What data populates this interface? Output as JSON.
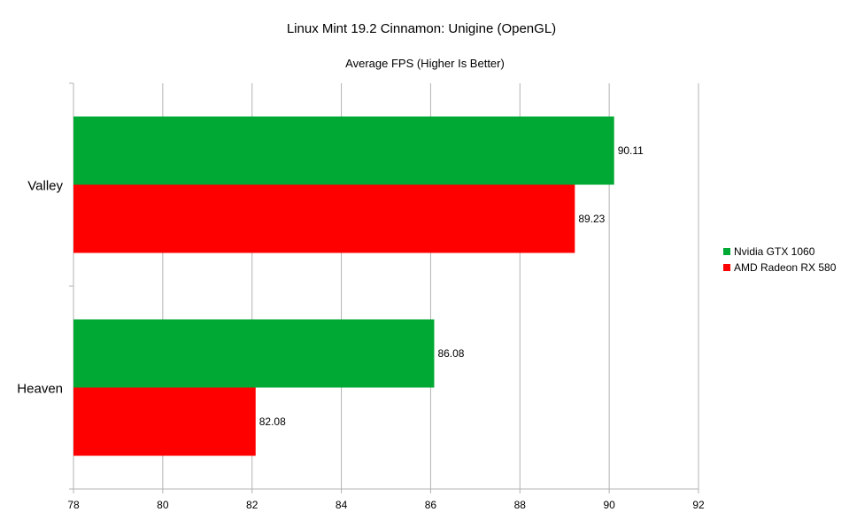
{
  "chart_data": {
    "type": "bar",
    "orientation": "horizontal",
    "title": "Linux Mint 19.2 Cinnamon: Unigine (OpenGL)",
    "subtitle": "Average FPS (Higher Is Better)",
    "categories": [
      "Valley",
      "Heaven"
    ],
    "series": [
      {
        "name": "Nvidia GTX 1060",
        "color": "#00a933",
        "values": [
          90.11,
          86.08
        ]
      },
      {
        "name": "AMD Radeon RX 580",
        "color": "#ff0000",
        "values": [
          89.23,
          82.08
        ]
      }
    ],
    "xlim": [
      78,
      92
    ],
    "xticks": [
      "78",
      "80",
      "82",
      "84",
      "86",
      "88",
      "90",
      "92"
    ],
    "grid": true,
    "legend": "right"
  }
}
